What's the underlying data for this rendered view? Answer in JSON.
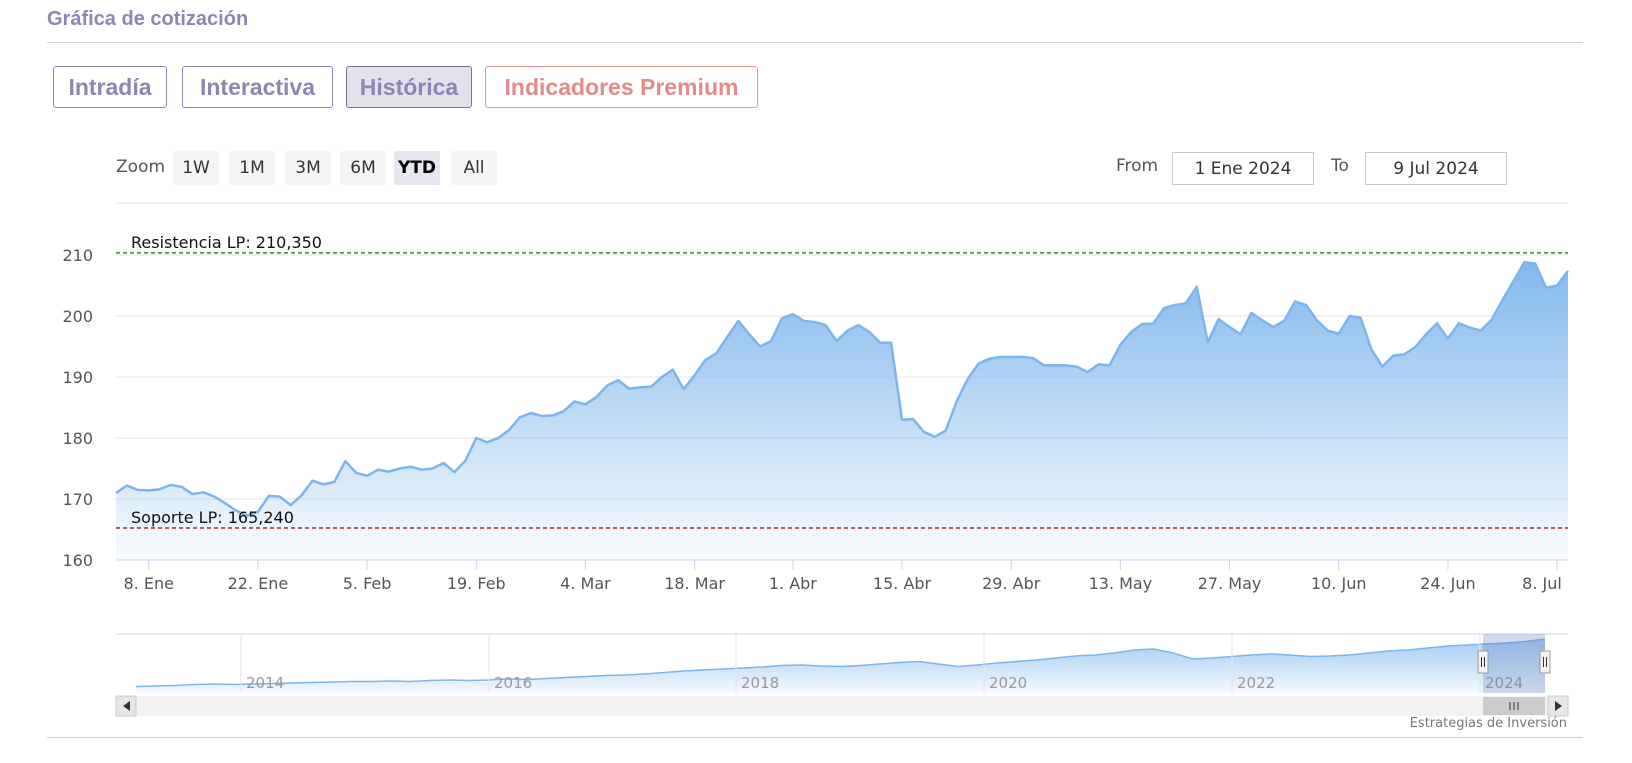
{
  "section_title": "Gráfica de cotización",
  "tabs": [
    {
      "label": "Intradía",
      "active": false
    },
    {
      "label": "Interactiva",
      "active": false
    },
    {
      "label": "Histórica",
      "active": true
    },
    {
      "label": "Indicadores Premium",
      "active": false
    }
  ],
  "zoom": {
    "label": "Zoom",
    "buttons": [
      "1W",
      "1M",
      "3M",
      "6M",
      "YTD",
      "All"
    ],
    "selected": "YTD"
  },
  "range": {
    "from_label": "From",
    "from_value": "1 Ene 2024",
    "to_label": "To",
    "to_value": "9 Jul 2024"
  },
  "credit": "Estrategias de Inversión",
  "colors": {
    "accent": "#8d85b3",
    "premium": "#e48a8a",
    "series_line": "#7cb5ec",
    "resistance": "#2e8b2e",
    "support": "#a52a2a"
  },
  "chart_data": {
    "type": "area",
    "ylim": [
      160,
      210
    ],
    "y_ticks": [
      160,
      170,
      180,
      190,
      200,
      210
    ],
    "x_ticks": [
      {
        "label": "8. Ene",
        "i": 3
      },
      {
        "label": "22. Ene",
        "i": 13
      },
      {
        "label": "5. Feb",
        "i": 23
      },
      {
        "label": "19. Feb",
        "i": 33
      },
      {
        "label": "4. Mar",
        "i": 43
      },
      {
        "label": "18. Mar",
        "i": 53
      },
      {
        "label": "1. Abr",
        "i": 62
      },
      {
        "label": "15. Abr",
        "i": 72
      },
      {
        "label": "29. Abr",
        "i": 82
      },
      {
        "label": "13. May",
        "i": 92
      },
      {
        "label": "27. May",
        "i": 102
      },
      {
        "label": "10. Jun",
        "i": 112
      },
      {
        "label": "24. Jun",
        "i": 122
      },
      {
        "label": "8. Jul",
        "i": 132
      }
    ],
    "values": [
      171.0,
      172.2,
      171.5,
      171.4,
      171.6,
      172.3,
      172.0,
      170.8,
      171.1,
      170.4,
      169.3,
      168.1,
      167.3,
      167.9,
      170.5,
      170.4,
      169.0,
      170.6,
      173.0,
      172.4,
      172.8,
      176.2,
      174.3,
      173.8,
      174.8,
      174.5,
      175.0,
      175.3,
      174.8,
      175.0,
      175.9,
      174.4,
      176.3,
      180.0,
      179.3,
      180.0,
      181.3,
      183.4,
      184.1,
      183.6,
      183.7,
      184.4,
      186.0,
      185.5,
      186.7,
      188.6,
      189.5,
      188.1,
      188.3,
      188.4,
      190.0,
      191.2,
      188.0,
      190.3,
      192.8,
      193.9,
      196.6,
      199.2,
      197.0,
      195.0,
      195.9,
      199.6,
      200.3,
      199.2,
      199.0,
      198.5,
      195.9,
      197.6,
      198.5,
      197.4,
      195.6,
      195.6,
      183.0,
      183.1,
      181.0,
      180.2,
      181.2,
      186.0,
      189.6,
      192.2,
      193.0,
      193.3,
      193.3,
      193.3,
      193.1,
      191.9,
      191.9,
      191.9,
      191.7,
      190.8,
      192.1,
      191.9,
      195.3,
      197.4,
      198.7,
      198.7,
      201.3,
      201.8,
      202.1,
      204.8,
      195.7,
      199.5,
      198.2,
      197.0,
      200.5,
      199.3,
      198.2,
      199.2,
      202.4,
      201.8,
      199.3,
      197.6,
      197.1,
      200.0,
      199.7,
      194.5,
      191.7,
      193.5,
      193.7,
      194.9,
      197.0,
      198.8,
      196.3,
      198.8,
      198.1,
      197.6,
      199.4,
      202.6,
      205.7,
      208.8,
      208.6,
      204.6,
      205.0,
      207.4
    ],
    "annotations": [
      {
        "label": "Resistencia LP: 210,350",
        "y": 210.35,
        "color": "#2e8b2e"
      },
      {
        "label": "Soporte LP: 165,240",
        "y": 165.24,
        "color": "#a52a2a"
      }
    ],
    "navigator": {
      "x_ticks": [
        "2014",
        "2016",
        "2018",
        "2020",
        "2022",
        "2024"
      ],
      "values": [
        0.05,
        0.06,
        0.07,
        0.09,
        0.1,
        0.09,
        0.1,
        0.11,
        0.12,
        0.13,
        0.14,
        0.15,
        0.15,
        0.16,
        0.15,
        0.17,
        0.18,
        0.17,
        0.18,
        0.2,
        0.19,
        0.21,
        0.23,
        0.25,
        0.27,
        0.28,
        0.3,
        0.33,
        0.36,
        0.38,
        0.4,
        0.42,
        0.44,
        0.47,
        0.48,
        0.46,
        0.45,
        0.47,
        0.5,
        0.53,
        0.55,
        0.5,
        0.45,
        0.48,
        0.52,
        0.55,
        0.58,
        0.62,
        0.66,
        0.68,
        0.72,
        0.78,
        0.8,
        0.72,
        0.6,
        0.62,
        0.65,
        0.68,
        0.7,
        0.68,
        0.65,
        0.66,
        0.68,
        0.72,
        0.76,
        0.78,
        0.82,
        0.86,
        0.88,
        0.9,
        0.92,
        0.95,
        1.0
      ],
      "selected_range": "YTD"
    }
  }
}
